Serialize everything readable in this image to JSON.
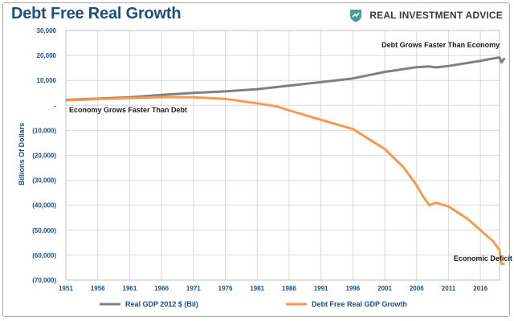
{
  "header": {
    "title": "Debt Free Real Growth",
    "brand": "REAL INVESTMENT ADVICE"
  },
  "colors": {
    "title": "#1f4e79",
    "gdp": "#808080",
    "debt_free": "#f59a4a",
    "grid": "#d9d9d9",
    "brand_icon": "#4a9d8f"
  },
  "chart_data": {
    "type": "line",
    "title": "Debt Free Real Growth",
    "ylabel": "Billions Of Dollars",
    "xlabel": "",
    "xlim": [
      1951,
      2019
    ],
    "ylim": [
      -70000,
      30000
    ],
    "grid": true,
    "legend_placement": "bottom",
    "x_ticks": [
      "1951",
      "1956",
      "1961",
      "1966",
      "1971",
      "1976",
      "1981",
      "1986",
      "1991",
      "1996",
      "2001",
      "2006",
      "2011",
      "2016"
    ],
    "y_ticks": [
      {
        "value": 30000,
        "label": "30,000"
      },
      {
        "value": 20000,
        "label": "20,000"
      },
      {
        "value": 10000,
        "label": "10,000"
      },
      {
        "value": 0,
        "label": "-"
      },
      {
        "value": -10000,
        "label": "(10,000)"
      },
      {
        "value": -20000,
        "label": "(20,000)"
      },
      {
        "value": -30000,
        "label": "(30,000)"
      },
      {
        "value": -40000,
        "label": "(40,000)"
      },
      {
        "value": -50000,
        "label": "(50,000)"
      },
      {
        "value": -60000,
        "label": "(60,000)"
      },
      {
        "value": -70000,
        "label": "(70,000)"
      }
    ],
    "series": [
      {
        "name": "Real GDP 2012 $ (Bil)",
        "color": "#808080",
        "x": [
          1951,
          1956,
          1961,
          1966,
          1971,
          1976,
          1981,
          1986,
          1991,
          1996,
          2001,
          2006,
          2008,
          2009,
          2011,
          2016,
          2018,
          2019,
          2019.3,
          2019.8
        ],
        "y": [
          2200,
          2700,
          3200,
          4200,
          5000,
          5600,
          6500,
          7900,
          9300,
          10800,
          13400,
          15300,
          15600,
          15200,
          15800,
          17800,
          18800,
          19200,
          17200,
          19000
        ]
      },
      {
        "name": "Debt Free Real GDP Growth",
        "color": "#f59a4a",
        "x": [
          1951,
          1956,
          1961,
          1966,
          1971,
          1976,
          1981,
          1984,
          1986,
          1991,
          1996,
          2001,
          2004,
          2006,
          2007,
          2008,
          2009,
          2011,
          2014,
          2016,
          2018,
          2019,
          2019.3,
          2019.8
        ],
        "y": [
          2000,
          2500,
          2900,
          3300,
          3200,
          2600,
          800,
          -400,
          -2000,
          -5800,
          -9500,
          -17500,
          -25000,
          -32000,
          -36500,
          -40000,
          -39000,
          -40500,
          -45500,
          -50000,
          -54500,
          -58000,
          -63500,
          -63500
        ]
      }
    ],
    "annotations": [
      {
        "text": "Debt Grows Faster Than Economy",
        "x": 2000.5,
        "y": 23300
      },
      {
        "text": "Economy Grows Faster Than Debt",
        "x": 1951.5,
        "y": -2800
      },
      {
        "text": "Economic Deficit",
        "x": 2011.8,
        "y": -62300
      }
    ]
  }
}
